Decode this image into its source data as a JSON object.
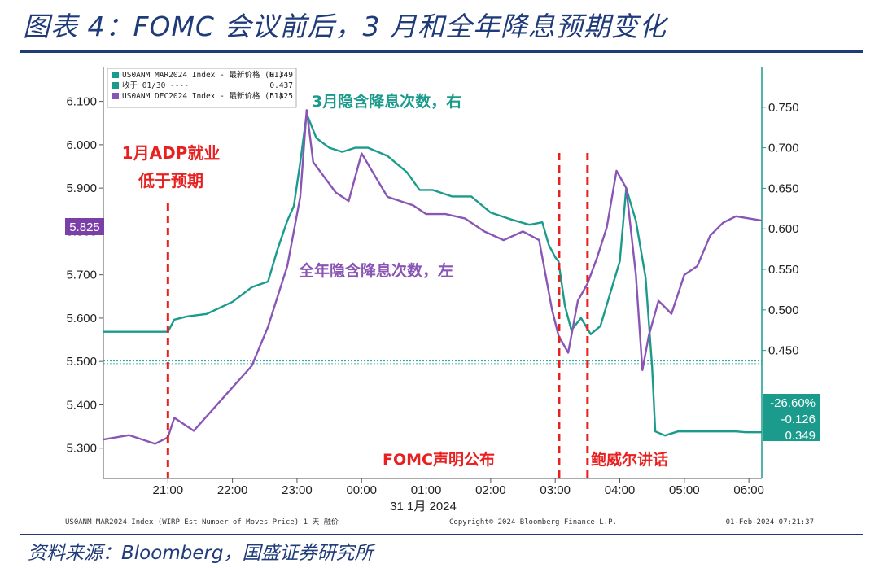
{
  "title": "图表 4：FOMC 会议前后，3 月和全年降息预期变化",
  "source": "资料来源：Bloomberg，国盛证券研究所",
  "colors": {
    "teal": "#1a9b8c",
    "purple": "#8a56b5",
    "red": "#e82020",
    "navy": "#1f3b7a"
  },
  "legend": [
    {
      "label": "US0ANM MAR2024 Index - 最新价格 (R1)",
      "value": "0.349",
      "color": "#1a9b8c"
    },
    {
      "label": "收于 01/30 ----",
      "value": "0.437",
      "color": "#1a9b8c"
    },
    {
      "label": "US0ANM DEC2024 Index - 最新价格 (L1)",
      "value": "5.825",
      "color": "#8a56b5"
    }
  ],
  "footer": {
    "left": "US0ANM MAR2024 Index (WIRP Est Number of Moves Price) 1 天  融价",
    "center": "Copyright© 2024 Bloomberg Finance L.P.",
    "right": "01-Feb-2024 07:21:37"
  },
  "annotations": {
    "adp_line1": "1月ADP就业",
    "adp_line2": "低于预期",
    "march_label": "3月隐含降息次数，右",
    "year_label": "全年隐含降息次数，左",
    "fomc_label": "FOMC声明公布",
    "powell_label": "鲍威尔讲话"
  },
  "chart_data": {
    "type": "line",
    "x_axis": {
      "ticks": [
        "21:00",
        "22:00",
        "23:00",
        "00:00",
        "01:00",
        "02:00",
        "03:00",
        "04:00",
        "05:00",
        "06:00"
      ],
      "date_label": "31 1月 2024",
      "range": [
        20.0,
        30.2
      ]
    },
    "y_left": {
      "range": [
        5.23,
        6.18
      ],
      "ticks": [
        "5.300",
        "5.400",
        "5.500",
        "5.600",
        "5.700",
        "5.800",
        "5.900",
        "6.000",
        "6.100"
      ],
      "last_value": "5.825"
    },
    "y_right": {
      "range": [
        0.292,
        0.8
      ],
      "ticks": [
        "0.450",
        "0.500",
        "0.550",
        "0.600",
        "0.650",
        "0.700",
        "0.750"
      ],
      "last_value": "0.349",
      "change_pct": "-26.60%",
      "change_abs": "-0.126"
    },
    "reference_lines": {
      "close_0130": 0.437,
      "left_level": 5.495
    },
    "event_lines": [
      {
        "x": 21.0,
        "name": "1月ADP就业低于预期"
      },
      {
        "x": 22.0,
        "name": "FOMC声明公布",
        "x_real": 27.06
      },
      {
        "x": 27.5,
        "name": "鲍威尔讲话"
      }
    ],
    "series": [
      {
        "name": "US0ANM MAR2024 Index",
        "axis": "right",
        "x": [
          20.0,
          21.0,
          21.1,
          21.3,
          21.6,
          22.0,
          22.3,
          22.55,
          22.7,
          22.85,
          22.95,
          23.05,
          23.15,
          23.3,
          23.5,
          23.7,
          23.9,
          24.1,
          24.4,
          24.7,
          24.9,
          25.1,
          25.4,
          25.7,
          26.0,
          26.3,
          26.6,
          26.8,
          26.9,
          27.0,
          27.05,
          27.15,
          27.25,
          27.4,
          27.55,
          27.7,
          27.85,
          28.0,
          28.1,
          28.25,
          28.4,
          28.5,
          28.55,
          28.7,
          28.9,
          29.2,
          29.5,
          29.8,
          29.95,
          30.2
        ],
        "y": [
          0.473,
          0.473,
          0.488,
          0.492,
          0.495,
          0.51,
          0.528,
          0.535,
          0.575,
          0.61,
          0.628,
          0.682,
          0.742,
          0.712,
          0.7,
          0.695,
          0.7,
          0.7,
          0.69,
          0.67,
          0.648,
          0.648,
          0.64,
          0.64,
          0.62,
          0.612,
          0.605,
          0.608,
          0.58,
          0.565,
          0.56,
          0.505,
          0.475,
          0.49,
          0.47,
          0.48,
          0.52,
          0.56,
          0.65,
          0.61,
          0.54,
          0.43,
          0.35,
          0.345,
          0.35,
          0.35,
          0.35,
          0.35,
          0.349,
          0.349
        ]
      },
      {
        "name": "US0ANM DEC2024 Index",
        "axis": "left",
        "x": [
          20.0,
          20.4,
          20.8,
          21.0,
          21.1,
          21.4,
          21.7,
          22.0,
          22.3,
          22.55,
          22.7,
          22.85,
          22.95,
          23.05,
          23.15,
          23.25,
          23.4,
          23.6,
          23.8,
          24.0,
          24.2,
          24.4,
          24.6,
          24.8,
          25.0,
          25.3,
          25.6,
          25.9,
          26.2,
          26.5,
          26.75,
          26.95,
          27.05,
          27.2,
          27.35,
          27.5,
          27.65,
          27.8,
          27.95,
          28.1,
          28.25,
          28.35,
          28.45,
          28.6,
          28.8,
          29.0,
          29.2,
          29.4,
          29.6,
          29.8,
          30.0,
          30.2
        ],
        "y": [
          5.32,
          5.33,
          5.31,
          5.325,
          5.37,
          5.34,
          5.39,
          5.44,
          5.49,
          5.58,
          5.65,
          5.72,
          5.8,
          5.88,
          6.08,
          5.96,
          5.93,
          5.89,
          5.87,
          5.98,
          5.93,
          5.88,
          5.87,
          5.86,
          5.84,
          5.84,
          5.83,
          5.8,
          5.78,
          5.8,
          5.78,
          5.62,
          5.56,
          5.52,
          5.64,
          5.68,
          5.74,
          5.81,
          5.94,
          5.9,
          5.7,
          5.48,
          5.56,
          5.64,
          5.61,
          5.7,
          5.72,
          5.79,
          5.82,
          5.835,
          5.83,
          5.825
        ]
      }
    ]
  }
}
